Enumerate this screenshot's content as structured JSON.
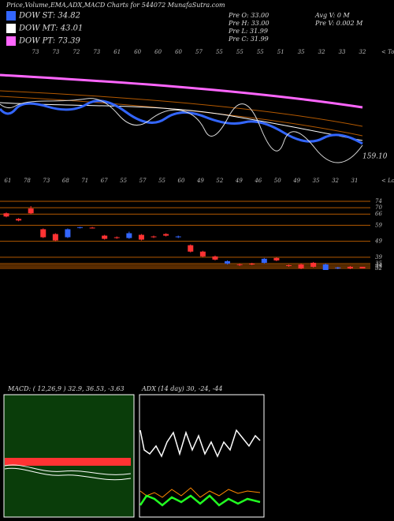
{
  "chart_data": {
    "type": "candlestick",
    "title": "Price,Volume,EMA,ADX,MACD Charts for 544072 MunafaSutra.com",
    "legend": [
      {
        "label": "DOW ST: 34.82",
        "color": "#3366ff"
      },
      {
        "label": "DOW MT: 43.01",
        "color": "#ffffff"
      },
      {
        "label": "DOW PT: 73.39",
        "color": "#ff66ff"
      }
    ],
    "pre": [
      "Pre  O: 33.00",
      "Pre  H: 33.00",
      "Pre  L: 31.99",
      "Pre  C: 31.99"
    ],
    "volume": [
      "Avg  V: 0  M",
      "Pre  V: 0.002  M"
    ],
    "tops_label": "< Tops",
    "tops": [
      73,
      73,
      72,
      73,
      61,
      60,
      60,
      60,
      57,
      55,
      55,
      55,
      51,
      35,
      32,
      33,
      32
    ],
    "lows_label": "< Lows",
    "lows": [
      61,
      78,
      73,
      68,
      71,
      67,
      55,
      57,
      55,
      60,
      49,
      52,
      49,
      46,
      50,
      49,
      35,
      32,
      31
    ],
    "ema_value": "159.10",
    "levels": [
      74,
      70,
      66,
      59,
      49,
      39,
      35,
      33,
      34,
      32
    ],
    "level_color": "#b35900",
    "ylim": [
      31,
      75
    ],
    "up_color": "#3366ff",
    "down_color": "#ff3333",
    "candles": [
      {
        "o": 66.5,
        "h": 67,
        "l": 64,
        "c": 64.5
      },
      {
        "o": 63,
        "h": 63.5,
        "l": 61.5,
        "c": 62
      },
      {
        "o": 69.5,
        "h": 71,
        "l": 66,
        "c": 66.5
      },
      {
        "o": 56.5,
        "h": 57,
        "l": 51,
        "c": 51.5
      },
      {
        "o": 53.5,
        "h": 54,
        "l": 49,
        "c": 49.5
      },
      {
        "o": 51.5,
        "h": 57,
        "l": 51,
        "c": 56.5
      },
      {
        "o": 57.5,
        "h": 58,
        "l": 57,
        "c": 57.8
      },
      {
        "o": 57.5,
        "h": 58,
        "l": 57,
        "c": 57.2
      },
      {
        "o": 52.5,
        "h": 53,
        "l": 50,
        "c": 50.5
      },
      {
        "o": 51.5,
        "h": 52,
        "l": 50.5,
        "c": 51
      },
      {
        "o": 51,
        "h": 55,
        "l": 50.5,
        "c": 54
      },
      {
        "o": 53,
        "h": 53.5,
        "l": 49.5,
        "c": 50
      },
      {
        "o": 52,
        "h": 52.5,
        "l": 51,
        "c": 51.5
      },
      {
        "o": 53.5,
        "h": 54,
        "l": 52,
        "c": 52.5
      },
      {
        "o": 51.5,
        "h": 52.5,
        "l": 51,
        "c": 52
      },
      {
        "o": 46.5,
        "h": 47,
        "l": 42,
        "c": 42.5
      },
      {
        "o": 42.5,
        "h": 43,
        "l": 39,
        "c": 39.5
      },
      {
        "o": 39.5,
        "h": 40,
        "l": 37,
        "c": 37.5
      },
      {
        "o": 35,
        "h": 37,
        "l": 34.5,
        "c": 36.5
      },
      {
        "o": 34.5,
        "h": 35,
        "l": 33.5,
        "c": 34
      },
      {
        "o": 35,
        "h": 35.5,
        "l": 34,
        "c": 34.5
      },
      {
        "o": 35.5,
        "h": 38.5,
        "l": 35,
        "c": 38
      },
      {
        "o": 38.5,
        "h": 39,
        "l": 36.5,
        "c": 37
      },
      {
        "o": 34,
        "h": 34.5,
        "l": 33,
        "c": 33.5
      },
      {
        "o": 34.5,
        "h": 35,
        "l": 31.5,
        "c": 32
      },
      {
        "o": 35.5,
        "h": 36,
        "l": 32.5,
        "c": 33
      },
      {
        "o": 31,
        "h": 35,
        "l": 31,
        "c": 34.5
      },
      {
        "o": 32,
        "h": 33,
        "l": 31.5,
        "c": 32.5
      },
      {
        "o": 33,
        "h": 33.5,
        "l": 31.5,
        "c": 32
      },
      {
        "o": 33,
        "h": 33,
        "l": 31.99,
        "c": 31.99
      }
    ],
    "macd_label": "MACD:                ( 12,26,9 ) 32.9, 36.53, -3.63",
    "adx_label": "ADX                 (14  day) 30, -24, -44"
  }
}
